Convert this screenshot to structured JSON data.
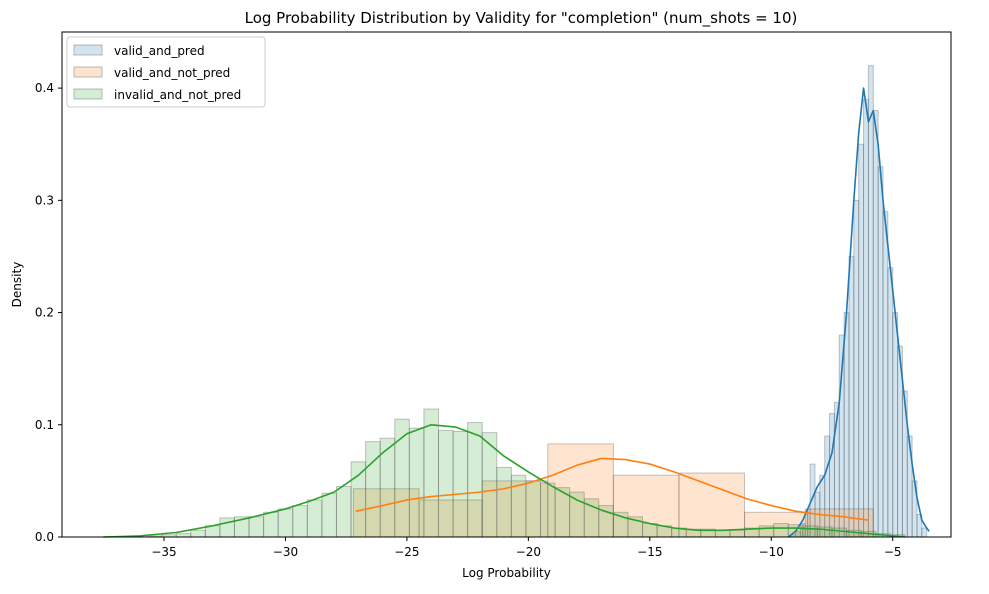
{
  "chart_data": {
    "type": "histogram",
    "title": "Log Probability Distribution by Validity for \"completion\" (num_shots = 10)",
    "xlabel": "Log Probability",
    "ylabel": "Density",
    "xlim": [
      -39.2,
      -2.6
    ],
    "ylim": [
      0,
      0.45
    ],
    "xticks": [
      -35,
      -30,
      -25,
      -20,
      -15,
      -10,
      -5
    ],
    "yticks": [
      0.0,
      0.1,
      0.2,
      0.3,
      0.4
    ],
    "grid": false,
    "legend_position": "upper-left",
    "series": [
      {
        "name": "valid_and_pred",
        "color": "#1f77b4",
        "hist": {
          "edges": [
            -9.2,
            -9.0,
            -8.8,
            -8.6,
            -8.4,
            -8.2,
            -8.0,
            -7.8,
            -7.6,
            -7.4,
            -7.2,
            -7.0,
            -6.8,
            -6.6,
            -6.4,
            -6.2,
            -6.0,
            -5.8,
            -5.6,
            -5.4,
            -5.2,
            -5.0,
            -4.8,
            -4.6,
            -4.4,
            -4.2,
            -4.0,
            -3.8,
            -3.6
          ],
          "values": [
            0.002,
            0.005,
            0.012,
            0.025,
            0.065,
            0.04,
            0.055,
            0.09,
            0.11,
            0.12,
            0.18,
            0.2,
            0.25,
            0.3,
            0.35,
            0.39,
            0.42,
            0.38,
            0.33,
            0.29,
            0.24,
            0.2,
            0.17,
            0.13,
            0.09,
            0.05,
            0.02,
            0.008
          ]
        },
        "kde": {
          "x": [
            -9.3,
            -9.0,
            -8.7,
            -8.4,
            -8.1,
            -7.8,
            -7.5,
            -7.2,
            -6.9,
            -6.6,
            -6.4,
            -6.2,
            -6.0,
            -5.8,
            -5.6,
            -5.4,
            -5.2,
            -5.0,
            -4.8,
            -4.6,
            -4.4,
            -4.2,
            -4.0,
            -3.8,
            -3.6,
            -3.5
          ],
          "y": [
            0.0,
            0.005,
            0.015,
            0.03,
            0.045,
            0.055,
            0.075,
            0.12,
            0.2,
            0.3,
            0.36,
            0.4,
            0.37,
            0.38,
            0.35,
            0.3,
            0.26,
            0.22,
            0.18,
            0.14,
            0.1,
            0.065,
            0.035,
            0.015,
            0.008,
            0.005
          ]
        }
      },
      {
        "name": "valid_and_not_pred",
        "color": "#ff7f0e",
        "hist": {
          "edges": [
            -27.2,
            -24.5,
            -21.9,
            -19.2,
            -16.5,
            -13.8,
            -11.1,
            -8.5,
            -5.8
          ],
          "values": [
            0.043,
            0.033,
            0.05,
            0.083,
            0.055,
            0.057,
            0.022,
            0.025
          ]
        },
        "kde": {
          "x": [
            -27.1,
            -26,
            -25,
            -24,
            -23,
            -22,
            -21,
            -20,
            -19,
            -18,
            -17,
            -16,
            -15,
            -14,
            -13,
            -12,
            -11,
            -10,
            -9,
            -8,
            -7,
            -6
          ],
          "y": [
            0.023,
            0.028,
            0.033,
            0.036,
            0.038,
            0.04,
            0.043,
            0.048,
            0.055,
            0.064,
            0.07,
            0.069,
            0.065,
            0.058,
            0.05,
            0.042,
            0.034,
            0.028,
            0.023,
            0.02,
            0.018,
            0.015
          ]
        }
      },
      {
        "name": "invalid_and_not_pred",
        "color": "#2ca02c",
        "hist": {
          "edges": [
            -37.5,
            -36.9,
            -36.3,
            -35.7,
            -35.1,
            -34.5,
            -33.9,
            -33.3,
            -32.7,
            -32.1,
            -31.5,
            -30.9,
            -30.3,
            -29.7,
            -29.1,
            -28.5,
            -27.9,
            -27.3,
            -26.7,
            -26.1,
            -25.5,
            -24.9,
            -24.3,
            -23.7,
            -23.1,
            -22.5,
            -21.9,
            -21.3,
            -20.7,
            -20.1,
            -19.5,
            -18.9,
            -18.3,
            -17.7,
            -17.1,
            -16.5,
            -15.9,
            -15.3,
            -14.7,
            -14.1,
            -13.5,
            -12.9,
            -12.3,
            -11.7,
            -11.1,
            -10.5,
            -9.9,
            -9.3,
            -8.7,
            -8.1,
            -7.5,
            -6.9,
            -6.3,
            -5.7,
            -5.1,
            -4.5
          ],
          "values": [
            0,
            0,
            0,
            0.001,
            0.002,
            0.003,
            0.006,
            0.01,
            0.017,
            0.018,
            0.018,
            0.022,
            0.025,
            0.028,
            0.033,
            0.039,
            0.045,
            0.067,
            0.085,
            0.088,
            0.105,
            0.097,
            0.114,
            0.095,
            0.094,
            0.102,
            0.093,
            0.062,
            0.055,
            0.05,
            0.048,
            0.044,
            0.04,
            0.034,
            0.028,
            0.022,
            0.018,
            0.012,
            0.01,
            0.008,
            0.007,
            0.007,
            0.006,
            0.006,
            0.008,
            0.01,
            0.012,
            0.011,
            0.01,
            0.009,
            0.008,
            0.006,
            0.005,
            0.003,
            0.002
          ]
        },
        "kde": {
          "x": [
            -37.5,
            -36,
            -34.5,
            -33,
            -31.5,
            -30,
            -29,
            -28,
            -27,
            -26,
            -25,
            -24,
            -23,
            -22,
            -21,
            -20,
            -19,
            -18,
            -17,
            -16,
            -15,
            -14,
            -13,
            -12,
            -11,
            -10,
            -9,
            -8,
            -7,
            -6,
            -5,
            -4.5
          ],
          "y": [
            0.0,
            0.001,
            0.004,
            0.01,
            0.017,
            0.025,
            0.032,
            0.04,
            0.055,
            0.075,
            0.092,
            0.1,
            0.098,
            0.09,
            0.072,
            0.058,
            0.045,
            0.033,
            0.024,
            0.017,
            0.012,
            0.008,
            0.006,
            0.006,
            0.007,
            0.008,
            0.008,
            0.007,
            0.005,
            0.003,
            0.001,
            0.0
          ]
        }
      }
    ]
  }
}
